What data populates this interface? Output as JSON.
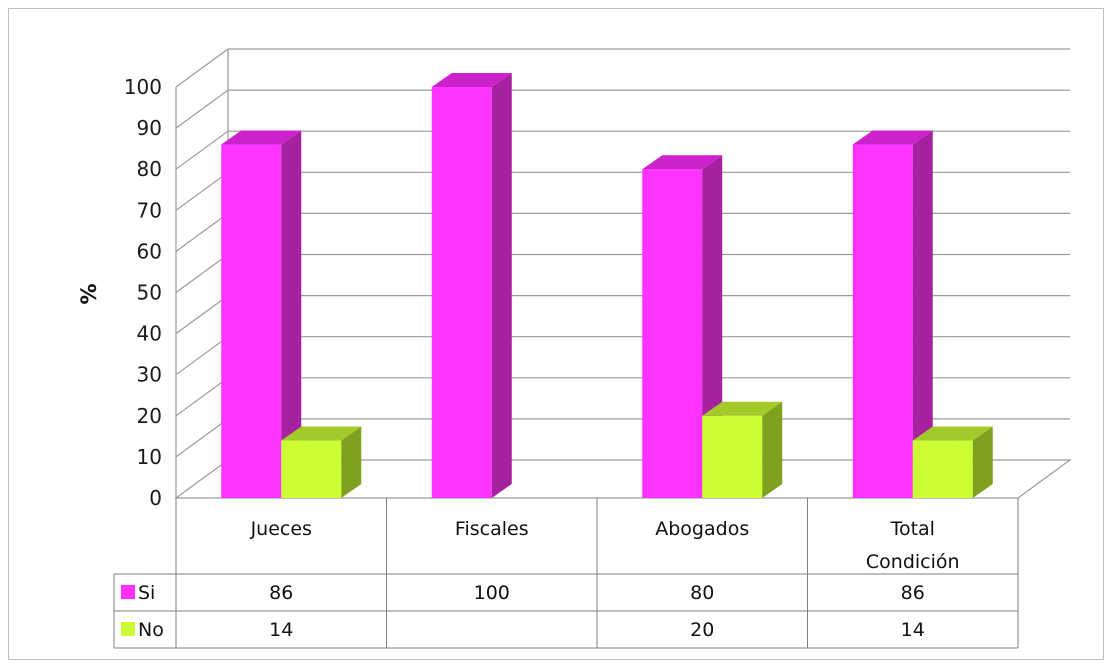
{
  "chart_data": {
    "type": "bar",
    "ylabel": "%",
    "ylim": [
      0,
      100
    ],
    "yticks": [
      "0",
      "10",
      "20",
      "30",
      "40",
      "50",
      "60",
      "70",
      "80",
      "90",
      "100"
    ],
    "categories": [
      [
        "Jueces"
      ],
      [
        "Fiscales"
      ],
      [
        "Abogados"
      ],
      [
        "Total",
        "Condición"
      ]
    ],
    "series": [
      {
        "name": "Si",
        "values": [
          86,
          100,
          80,
          86
        ],
        "labels": [
          "86",
          "100",
          "80",
          "86"
        ],
        "color": "#ff33ff",
        "side": "#a5219f",
        "top": "#cc22cc"
      },
      {
        "name": "No",
        "values": [
          14,
          0,
          20,
          14
        ],
        "labels": [
          "14",
          "",
          "20",
          "14"
        ],
        "color": "#ccff33",
        "side": "#80a020",
        "top": "#a3c92a"
      }
    ],
    "grid": true,
    "legend": "data-table"
  }
}
